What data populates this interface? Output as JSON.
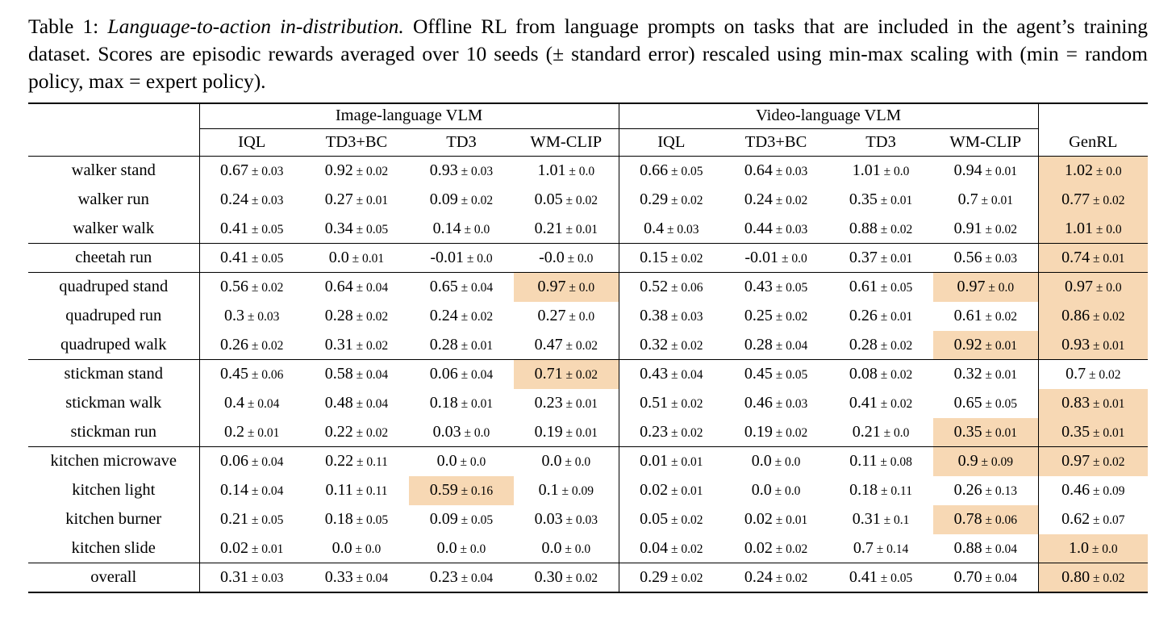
{
  "caption": {
    "label": "Table 1:",
    "title": "Language-to-action in-distribution.",
    "body": "Offline RL from language prompts on tasks that are included in the agent’s training dataset. Scores are episodic rewards averaged over 10 seeds (± standard error) rescaled using min-max scaling with (min = random policy, max = expert policy)."
  },
  "table": {
    "pm": "±",
    "highlight_color": "#f7d8b4",
    "group_headers": [
      {
        "label": "Image-language VLM",
        "span": 4
      },
      {
        "label": "Video-language VLM",
        "span": 4
      }
    ],
    "column_headers": [
      "IQL",
      "TD3+BC",
      "TD3",
      "WM-CLIP",
      "IQL",
      "TD3+BC",
      "TD3",
      "WM-CLIP",
      "GenRL"
    ],
    "rows": [
      {
        "label": "walker stand",
        "section_end": false,
        "cells": [
          {
            "v": "0.67",
            "e": "0.03",
            "h": false
          },
          {
            "v": "0.92",
            "e": "0.02",
            "h": false
          },
          {
            "v": "0.93",
            "e": "0.03",
            "h": false
          },
          {
            "v": "1.01",
            "e": "0.0",
            "h": false
          },
          {
            "v": "0.66",
            "e": "0.05",
            "h": false
          },
          {
            "v": "0.64",
            "e": "0.03",
            "h": false
          },
          {
            "v": "1.01",
            "e": "0.0",
            "h": false
          },
          {
            "v": "0.94",
            "e": "0.01",
            "h": false
          },
          {
            "v": "1.02",
            "e": "0.0",
            "h": true
          }
        ]
      },
      {
        "label": "walker run",
        "section_end": false,
        "cells": [
          {
            "v": "0.24",
            "e": "0.03",
            "h": false
          },
          {
            "v": "0.27",
            "e": "0.01",
            "h": false
          },
          {
            "v": "0.09",
            "e": "0.02",
            "h": false
          },
          {
            "v": "0.05",
            "e": "0.02",
            "h": false
          },
          {
            "v": "0.29",
            "e": "0.02",
            "h": false
          },
          {
            "v": "0.24",
            "e": "0.02",
            "h": false
          },
          {
            "v": "0.35",
            "e": "0.01",
            "h": false
          },
          {
            "v": "0.7",
            "e": "0.01",
            "h": false
          },
          {
            "v": "0.77",
            "e": "0.02",
            "h": true
          }
        ]
      },
      {
        "label": "walker walk",
        "section_end": true,
        "cells": [
          {
            "v": "0.41",
            "e": "0.05",
            "h": false
          },
          {
            "v": "0.34",
            "e": "0.05",
            "h": false
          },
          {
            "v": "0.14",
            "e": "0.0",
            "h": false
          },
          {
            "v": "0.21",
            "e": "0.01",
            "h": false
          },
          {
            "v": "0.4",
            "e": "0.03",
            "h": false
          },
          {
            "v": "0.44",
            "e": "0.03",
            "h": false
          },
          {
            "v": "0.88",
            "e": "0.02",
            "h": false
          },
          {
            "v": "0.91",
            "e": "0.02",
            "h": false
          },
          {
            "v": "1.01",
            "e": "0.0",
            "h": true
          }
        ]
      },
      {
        "label": "cheetah run",
        "section_end": true,
        "cells": [
          {
            "v": "0.41",
            "e": "0.05",
            "h": false
          },
          {
            "v": "0.0",
            "e": "0.01",
            "h": false
          },
          {
            "v": "-0.01",
            "e": "0.0",
            "h": false
          },
          {
            "v": "-0.0",
            "e": "0.0",
            "h": false
          },
          {
            "v": "0.15",
            "e": "0.02",
            "h": false
          },
          {
            "v": "-0.01",
            "e": "0.0",
            "h": false
          },
          {
            "v": "0.37",
            "e": "0.01",
            "h": false
          },
          {
            "v": "0.56",
            "e": "0.03",
            "h": false
          },
          {
            "v": "0.74",
            "e": "0.01",
            "h": true
          }
        ]
      },
      {
        "label": "quadruped stand",
        "section_end": false,
        "cells": [
          {
            "v": "0.56",
            "e": "0.02",
            "h": false
          },
          {
            "v": "0.64",
            "e": "0.04",
            "h": false
          },
          {
            "v": "0.65",
            "e": "0.04",
            "h": false
          },
          {
            "v": "0.97",
            "e": "0.0",
            "h": true
          },
          {
            "v": "0.52",
            "e": "0.06",
            "h": false
          },
          {
            "v": "0.43",
            "e": "0.05",
            "h": false
          },
          {
            "v": "0.61",
            "e": "0.05",
            "h": false
          },
          {
            "v": "0.97",
            "e": "0.0",
            "h": true
          },
          {
            "v": "0.97",
            "e": "0.0",
            "h": true
          }
        ]
      },
      {
        "label": "quadruped run",
        "section_end": false,
        "cells": [
          {
            "v": "0.3",
            "e": "0.03",
            "h": false
          },
          {
            "v": "0.28",
            "e": "0.02",
            "h": false
          },
          {
            "v": "0.24",
            "e": "0.02",
            "h": false
          },
          {
            "v": "0.27",
            "e": "0.0",
            "h": false
          },
          {
            "v": "0.38",
            "e": "0.03",
            "h": false
          },
          {
            "v": "0.25",
            "e": "0.02",
            "h": false
          },
          {
            "v": "0.26",
            "e": "0.01",
            "h": false
          },
          {
            "v": "0.61",
            "e": "0.02",
            "h": false
          },
          {
            "v": "0.86",
            "e": "0.02",
            "h": true
          }
        ]
      },
      {
        "label": "quadruped walk",
        "section_end": true,
        "cells": [
          {
            "v": "0.26",
            "e": "0.02",
            "h": false
          },
          {
            "v": "0.31",
            "e": "0.02",
            "h": false
          },
          {
            "v": "0.28",
            "e": "0.01",
            "h": false
          },
          {
            "v": "0.47",
            "e": "0.02",
            "h": false
          },
          {
            "v": "0.32",
            "e": "0.02",
            "h": false
          },
          {
            "v": "0.28",
            "e": "0.04",
            "h": false
          },
          {
            "v": "0.28",
            "e": "0.02",
            "h": false
          },
          {
            "v": "0.92",
            "e": "0.01",
            "h": true
          },
          {
            "v": "0.93",
            "e": "0.01",
            "h": true
          }
        ]
      },
      {
        "label": "stickman stand",
        "section_end": false,
        "cells": [
          {
            "v": "0.45",
            "e": "0.06",
            "h": false
          },
          {
            "v": "0.58",
            "e": "0.04",
            "h": false
          },
          {
            "v": "0.06",
            "e": "0.04",
            "h": false
          },
          {
            "v": "0.71",
            "e": "0.02",
            "h": true
          },
          {
            "v": "0.43",
            "e": "0.04",
            "h": false
          },
          {
            "v": "0.45",
            "e": "0.05",
            "h": false
          },
          {
            "v": "0.08",
            "e": "0.02",
            "h": false
          },
          {
            "v": "0.32",
            "e": "0.01",
            "h": false
          },
          {
            "v": "0.7",
            "e": "0.02",
            "h": false
          }
        ]
      },
      {
        "label": "stickman walk",
        "section_end": false,
        "cells": [
          {
            "v": "0.4",
            "e": "0.04",
            "h": false
          },
          {
            "v": "0.48",
            "e": "0.04",
            "h": false
          },
          {
            "v": "0.18",
            "e": "0.01",
            "h": false
          },
          {
            "v": "0.23",
            "e": "0.01",
            "h": false
          },
          {
            "v": "0.51",
            "e": "0.02",
            "h": false
          },
          {
            "v": "0.46",
            "e": "0.03",
            "h": false
          },
          {
            "v": "0.41",
            "e": "0.02",
            "h": false
          },
          {
            "v": "0.65",
            "e": "0.05",
            "h": false
          },
          {
            "v": "0.83",
            "e": "0.01",
            "h": true
          }
        ]
      },
      {
        "label": "stickman run",
        "section_end": true,
        "cells": [
          {
            "v": "0.2",
            "e": "0.01",
            "h": false
          },
          {
            "v": "0.22",
            "e": "0.02",
            "h": false
          },
          {
            "v": "0.03",
            "e": "0.0",
            "h": false
          },
          {
            "v": "0.19",
            "e": "0.01",
            "h": false
          },
          {
            "v": "0.23",
            "e": "0.02",
            "h": false
          },
          {
            "v": "0.19",
            "e": "0.02",
            "h": false
          },
          {
            "v": "0.21",
            "e": "0.0",
            "h": false
          },
          {
            "v": "0.35",
            "e": "0.01",
            "h": true
          },
          {
            "v": "0.35",
            "e": "0.01",
            "h": true
          }
        ]
      },
      {
        "label": "kitchen microwave",
        "section_end": false,
        "cells": [
          {
            "v": "0.06",
            "e": "0.04",
            "h": false
          },
          {
            "v": "0.22",
            "e": "0.11",
            "h": false
          },
          {
            "v": "0.0",
            "e": "0.0",
            "h": false
          },
          {
            "v": "0.0",
            "e": "0.0",
            "h": false
          },
          {
            "v": "0.01",
            "e": "0.01",
            "h": false
          },
          {
            "v": "0.0",
            "e": "0.0",
            "h": false
          },
          {
            "v": "0.11",
            "e": "0.08",
            "h": false
          },
          {
            "v": "0.9",
            "e": "0.09",
            "h": true
          },
          {
            "v": "0.97",
            "e": "0.02",
            "h": true
          }
        ]
      },
      {
        "label": "kitchen light",
        "section_end": false,
        "cells": [
          {
            "v": "0.14",
            "e": "0.04",
            "h": false
          },
          {
            "v": "0.11",
            "e": "0.11",
            "h": false
          },
          {
            "v": "0.59",
            "e": "0.16",
            "h": true
          },
          {
            "v": "0.1",
            "e": "0.09",
            "h": false
          },
          {
            "v": "0.02",
            "e": "0.01",
            "h": false
          },
          {
            "v": "0.0",
            "e": "0.0",
            "h": false
          },
          {
            "v": "0.18",
            "e": "0.11",
            "h": false
          },
          {
            "v": "0.26",
            "e": "0.13",
            "h": false
          },
          {
            "v": "0.46",
            "e": "0.09",
            "h": false
          }
        ]
      },
      {
        "label": "kitchen burner",
        "section_end": false,
        "cells": [
          {
            "v": "0.21",
            "e": "0.05",
            "h": false
          },
          {
            "v": "0.18",
            "e": "0.05",
            "h": false
          },
          {
            "v": "0.09",
            "e": "0.05",
            "h": false
          },
          {
            "v": "0.03",
            "e": "0.03",
            "h": false
          },
          {
            "v": "0.05",
            "e": "0.02",
            "h": false
          },
          {
            "v": "0.02",
            "e": "0.01",
            "h": false
          },
          {
            "v": "0.31",
            "e": "0.1",
            "h": false
          },
          {
            "v": "0.78",
            "e": "0.06",
            "h": true
          },
          {
            "v": "0.62",
            "e": "0.07",
            "h": false
          }
        ]
      },
      {
        "label": "kitchen slide",
        "section_end": true,
        "cells": [
          {
            "v": "0.02",
            "e": "0.01",
            "h": false
          },
          {
            "v": "0.0",
            "e": "0.0",
            "h": false
          },
          {
            "v": "0.0",
            "e": "0.0",
            "h": false
          },
          {
            "v": "0.0",
            "e": "0.0",
            "h": false
          },
          {
            "v": "0.04",
            "e": "0.02",
            "h": false
          },
          {
            "v": "0.02",
            "e": "0.02",
            "h": false
          },
          {
            "v": "0.7",
            "e": "0.14",
            "h": false
          },
          {
            "v": "0.88",
            "e": "0.04",
            "h": false
          },
          {
            "v": "1.0",
            "e": "0.0",
            "h": true
          }
        ]
      },
      {
        "label": "overall",
        "section_end": false,
        "cells": [
          {
            "v": "0.31",
            "e": "0.03",
            "h": false
          },
          {
            "v": "0.33",
            "e": "0.04",
            "h": false
          },
          {
            "v": "0.23",
            "e": "0.04",
            "h": false
          },
          {
            "v": "0.30",
            "e": "0.02",
            "h": false
          },
          {
            "v": "0.29",
            "e": "0.02",
            "h": false
          },
          {
            "v": "0.24",
            "e": "0.02",
            "h": false
          },
          {
            "v": "0.41",
            "e": "0.05",
            "h": false
          },
          {
            "v": "0.70",
            "e": "0.04",
            "h": false
          },
          {
            "v": "0.80",
            "e": "0.02",
            "h": true
          }
        ]
      }
    ]
  }
}
